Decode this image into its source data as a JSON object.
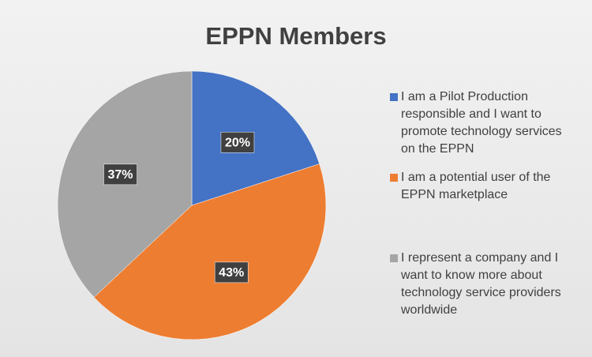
{
  "chart_data": {
    "type": "pie",
    "title": "EPPN Members",
    "categories": [
      "I am a Pilot Production responsible and I want to promote technology services on the EPPN",
      "I am a potential user of the EPPN marketplace",
      "I represent a company and I want to know more about technology service providers worldwide"
    ],
    "values": [
      20,
      43,
      37
    ],
    "value_labels": [
      "20%",
      "43%",
      "37%"
    ],
    "colors": [
      "#4472c4",
      "#ed7d31",
      "#a5a5a5"
    ],
    "legend": "right"
  }
}
